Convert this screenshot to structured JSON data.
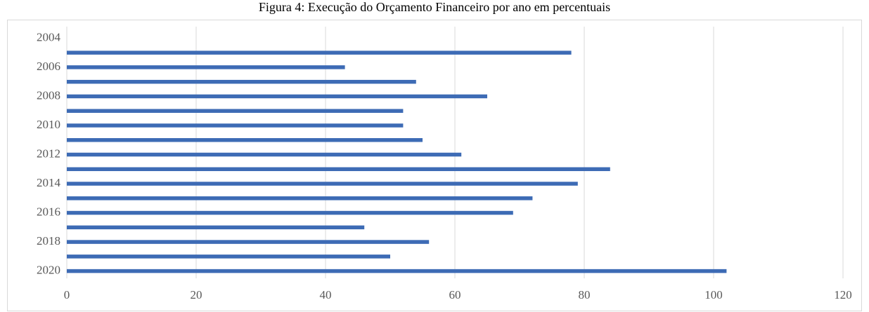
{
  "chart_data": {
    "type": "bar",
    "orientation": "horizontal",
    "title": "Figura 4: Execução do Orçamento Financeiro por ano em percentuais",
    "categories": [
      "2004",
      null,
      "2006",
      null,
      "2008",
      null,
      "2010",
      null,
      "2012",
      null,
      "2014",
      null,
      "2016",
      null,
      "2018",
      null,
      "2020"
    ],
    "values": [
      null,
      78,
      43,
      54,
      65,
      52,
      52,
      55,
      61,
      84,
      79,
      72,
      69,
      46,
      56,
      50,
      102
    ],
    "color": "#3d6bb5",
    "xlim": [
      0,
      120
    ],
    "xticks": [
      0,
      20,
      40,
      60,
      80,
      100,
      120
    ],
    "grid": true
  }
}
